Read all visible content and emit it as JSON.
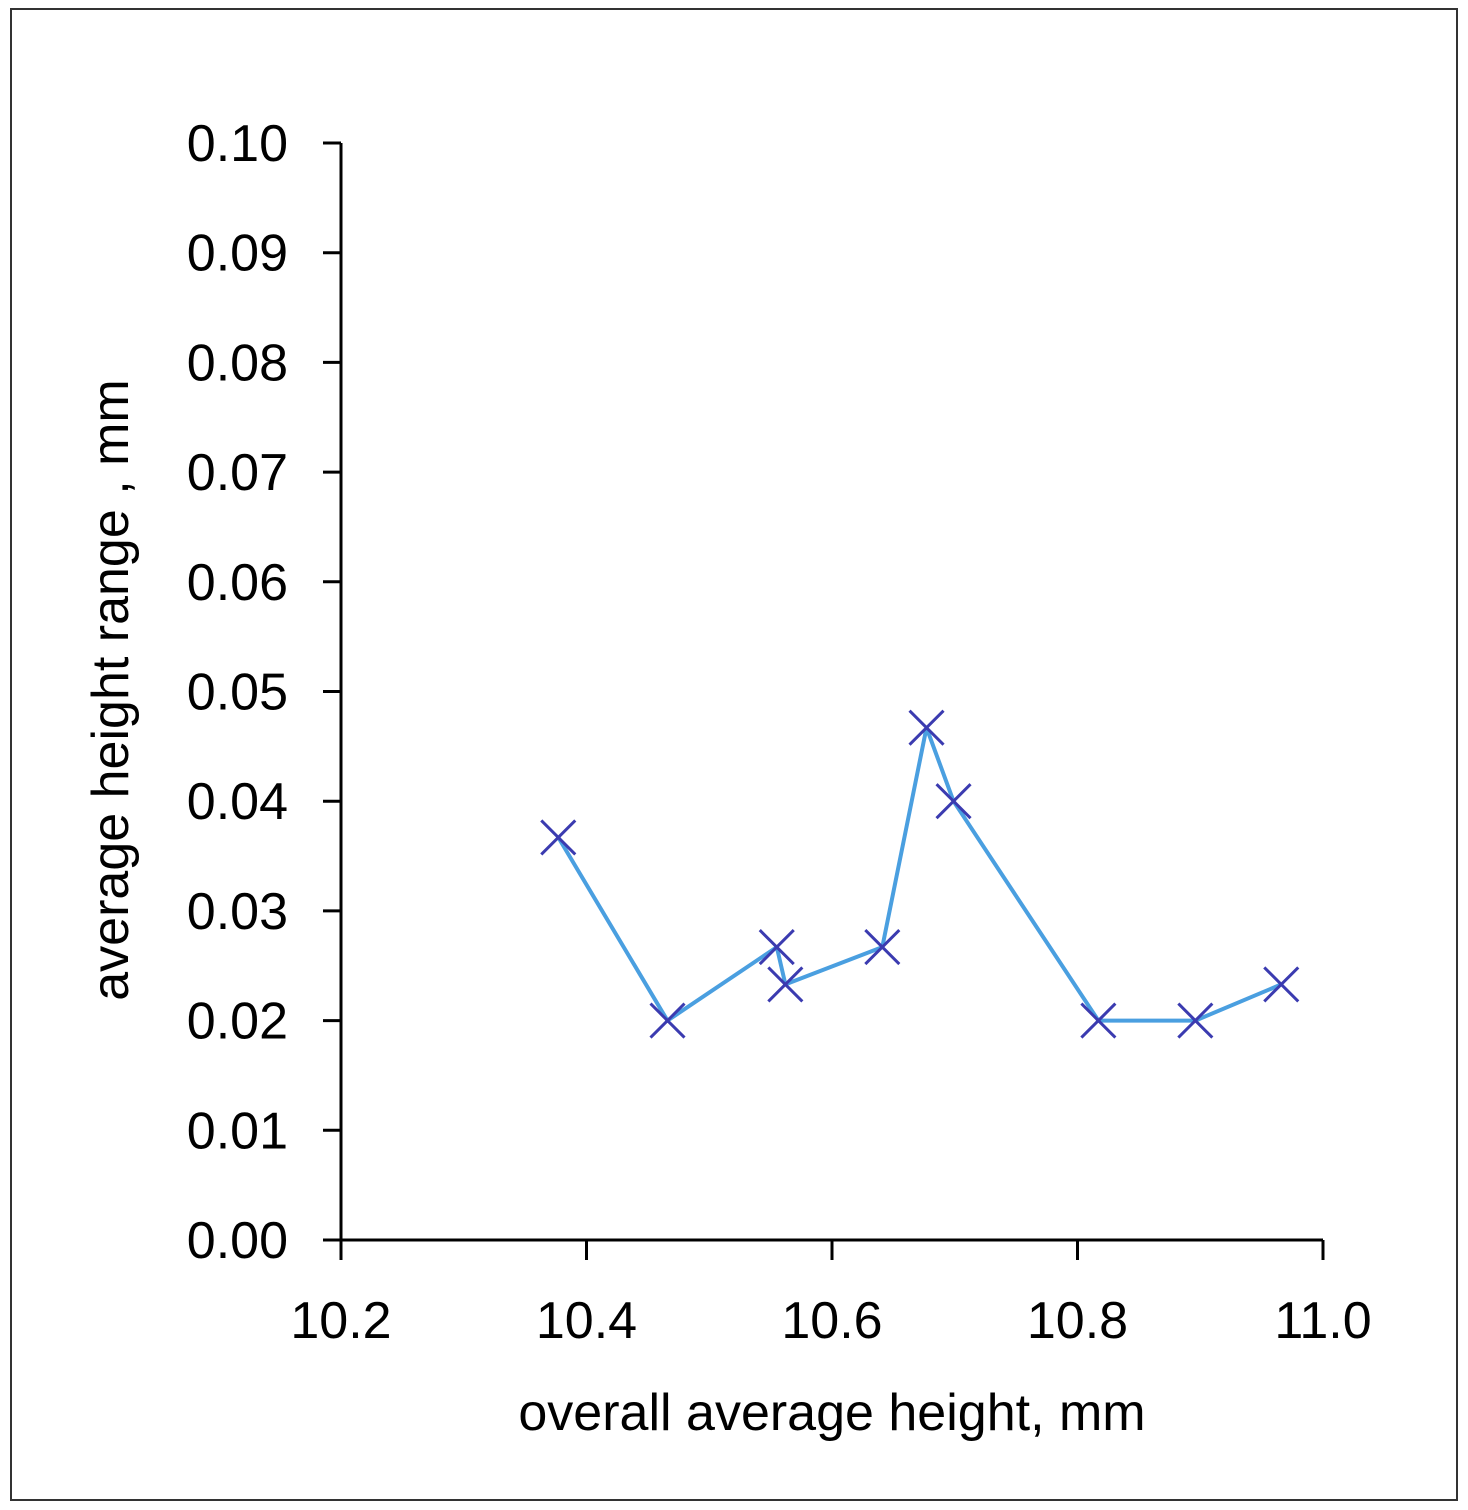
{
  "chart_data": {
    "type": "line",
    "xlabel": "overall average height, mm",
    "ylabel": "average height range , mm",
    "xlim": [
      10.2,
      11.0
    ],
    "ylim": [
      0.0,
      0.1
    ],
    "x_ticks": [
      "10.2",
      "10.4",
      "10.6",
      "10.8",
      "11.0"
    ],
    "y_ticks": [
      "0.00",
      "0.01",
      "0.02",
      "0.03",
      "0.04",
      "0.05",
      "0.06",
      "0.07",
      "0.08",
      "0.09",
      "0.10"
    ],
    "grid": false,
    "legend": "none",
    "series": [
      {
        "marker": "x",
        "line_color": "#4a9fe0",
        "marker_color": "#3b3bb0",
        "points": [
          {
            "x": 10.377,
            "y": 0.0367
          },
          {
            "x": 10.466,
            "y": 0.02
          },
          {
            "x": 10.555,
            "y": 0.0267
          },
          {
            "x": 10.562,
            "y": 0.0233
          },
          {
            "x": 10.641,
            "y": 0.0267
          },
          {
            "x": 10.677,
            "y": 0.0467
          },
          {
            "x": 10.699,
            "y": 0.04
          },
          {
            "x": 10.817,
            "y": 0.02
          },
          {
            "x": 10.896,
            "y": 0.02
          },
          {
            "x": 10.966,
            "y": 0.0233
          }
        ]
      }
    ]
  }
}
